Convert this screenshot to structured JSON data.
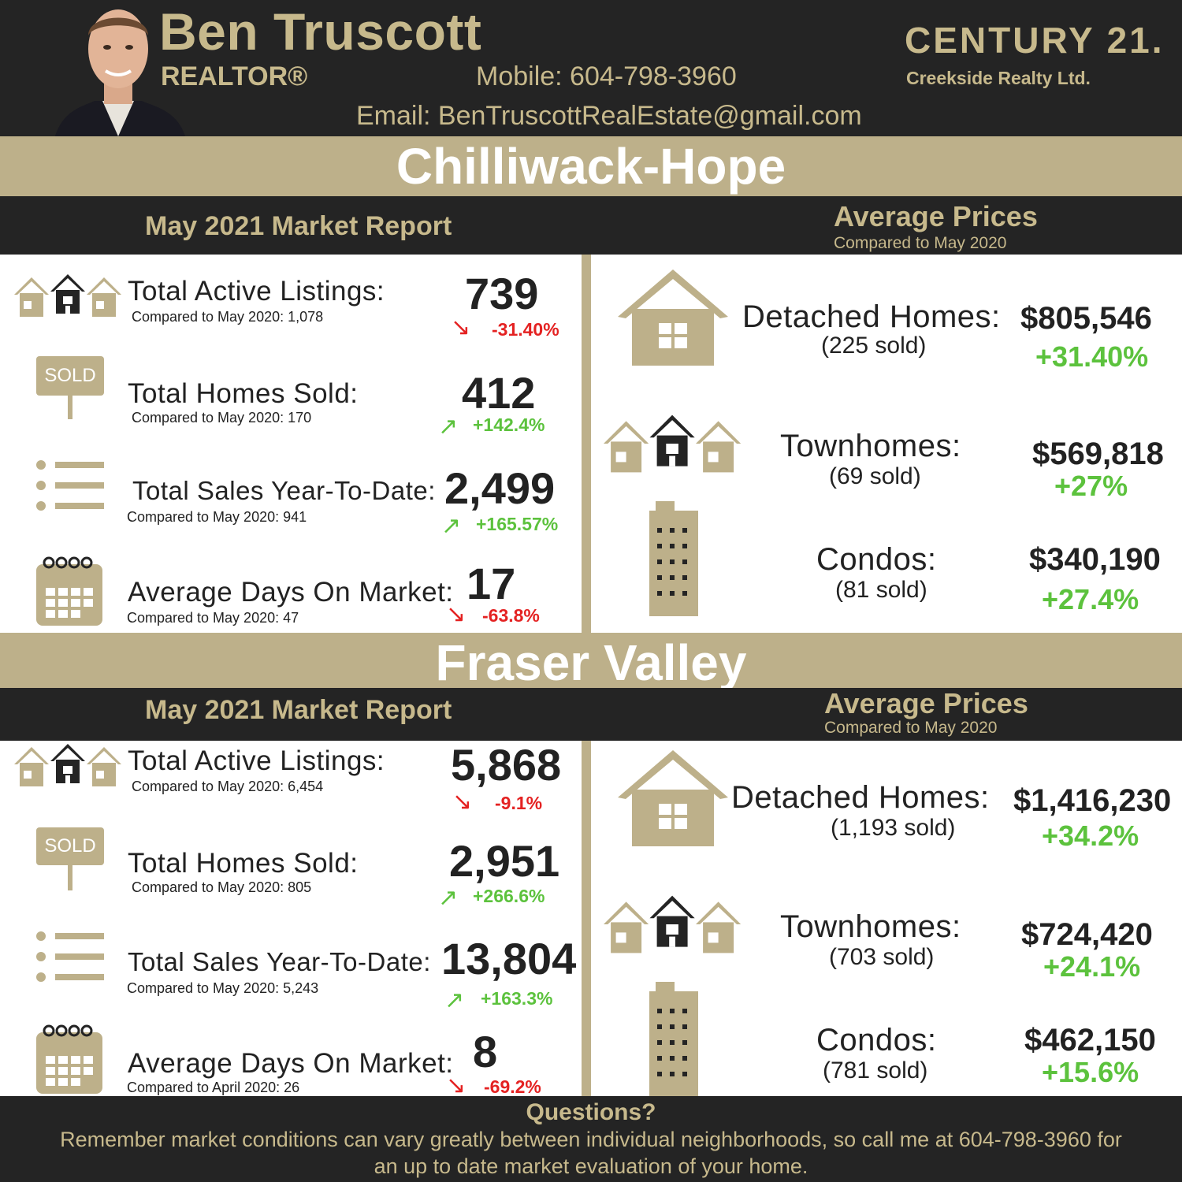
{
  "header": {
    "name": "Ben Truscott",
    "title": "REALTOR®",
    "mobile": "Mobile: 604-798-3960",
    "email": "Email: BenTruscottRealEstate@gmail.com",
    "brand": "CENTURY 21.",
    "brokerage": "Creekside Realty Ltd."
  },
  "sections": [
    {
      "region": "Chilliwack-Hope",
      "report_title": "May 2021 Market Report",
      "avg_title": "Average Prices",
      "avg_compare": "Compared to May 2020",
      "stats": [
        {
          "label": "Total Active Listings:",
          "compare": "Compared to May 2020: 1,078",
          "value": "739",
          "change": "-31.40%",
          "dir": "down"
        },
        {
          "label": "Total Homes Sold:",
          "compare": "Compared to May 2020: 170",
          "value": "412",
          "change": "+142.4%",
          "dir": "up"
        },
        {
          "label": "Total Sales Year-To-Date:",
          "compare": "Compared to May 2020: 941",
          "value": "2,499",
          "change": "+165.57%",
          "dir": "up"
        },
        {
          "label": "Average Days On Market:",
          "compare": "Compared to May 2020: 47",
          "value": "17",
          "change": "-63.8%",
          "dir": "down"
        }
      ],
      "prices": [
        {
          "label": "Detached Homes:",
          "sold": "(225 sold)",
          "price": "$805,546",
          "change": "+31.40%"
        },
        {
          "label": "Townhomes:",
          "sold": "(69 sold)",
          "price": "$569,818",
          "change": "+27%"
        },
        {
          "label": "Condos:",
          "sold": "(81 sold)",
          "price": "$340,190",
          "change": "+27.4%"
        }
      ]
    },
    {
      "region": "Fraser Valley",
      "report_title": "May 2021 Market Report",
      "avg_title": "Average Prices",
      "avg_compare": "Compared to May 2020",
      "stats": [
        {
          "label": "Total Active Listings:",
          "compare": "Compared to May 2020: 6,454",
          "value": "5,868",
          "change": "-9.1%",
          "dir": "down"
        },
        {
          "label": "Total Homes Sold:",
          "compare": "Compared to May 2020: 805",
          "value": "2,951",
          "change": "+266.6%",
          "dir": "up"
        },
        {
          "label": "Total Sales Year-To-Date:",
          "compare": "Compared to May 2020: 5,243",
          "value": "13,804",
          "change": "+163.3%",
          "dir": "up"
        },
        {
          "label": "Average Days On Market:",
          "compare": "Compared to April 2020: 26",
          "value": "8",
          "change": "-69.2%",
          "dir": "down"
        }
      ],
      "prices": [
        {
          "label": "Detached Homes:",
          "sold": "(1,193 sold)",
          "price": "$1,416,230",
          "change": "+34.2%"
        },
        {
          "label": "Townhomes:",
          "sold": "(703 sold)",
          "price": "$724,420",
          "change": "+24.1%"
        },
        {
          "label": "Condos:",
          "sold": "(781 sold)",
          "price": "$462,150",
          "change": "+15.6%"
        }
      ]
    }
  ],
  "icons": {
    "sold_sign": "SOLD"
  },
  "footer": {
    "question": "Questions?",
    "text": "Remember market conditions can vary greatly between individual neighborhoods, so call me at 604-798-3960 for an up to date market evaluation of your home."
  },
  "colors": {
    "gold": "#bdb08a",
    "dark": "#242424",
    "positive": "#5cc23d",
    "negative": "#e42222"
  }
}
